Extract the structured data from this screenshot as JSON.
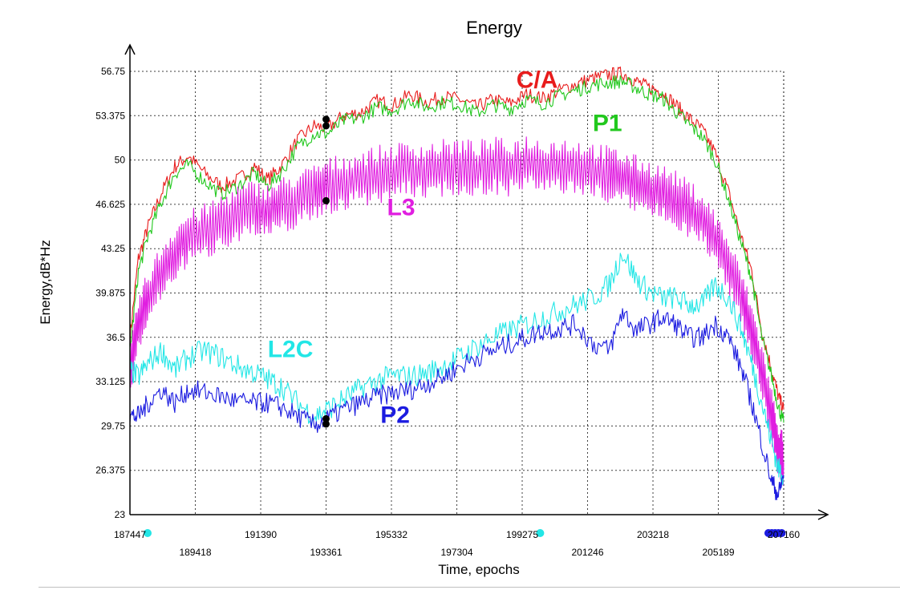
{
  "chart_data": {
    "type": "line",
    "title": "Energy",
    "xlabel": "Time, epochs",
    "ylabel": "Energy,dB*Hz",
    "xlim": [
      187447,
      207160
    ],
    "ylim": [
      23,
      56.75
    ],
    "grid": true,
    "x_ticks_upper": [
      "187447",
      "191390",
      "195332",
      "199275",
      "203218",
      "207160"
    ],
    "x_ticks_lower": [
      "189418",
      "193361",
      "197304",
      "201246",
      "205189"
    ],
    "y_ticks": [
      "56.75",
      "53.375",
      "50",
      "46.625",
      "43.25",
      "39.875",
      "36.5",
      "33.125",
      "29.75",
      "26.375",
      "23"
    ],
    "series": [
      {
        "name": "C/A",
        "color": "#e81c1c",
        "x": [
          187447,
          187700,
          188000,
          188400,
          188800,
          189200,
          189700,
          190200,
          190700,
          191200,
          191600,
          192000,
          192500,
          193000,
          193400,
          193900,
          194400,
          194900,
          195400,
          195900,
          196400,
          196900,
          197400,
          197900,
          198400,
          198900,
          199400,
          199900,
          200400,
          200900,
          201400,
          201900,
          202300,
          202700,
          203100,
          203500,
          203900,
          204300,
          204700,
          205100,
          205500,
          205900,
          206200,
          206500,
          206800,
          207000,
          207160
        ],
        "y": [
          36.5,
          42.5,
          45.0,
          47.5,
          49.5,
          50.3,
          49.0,
          48.0,
          48.5,
          49.5,
          48.5,
          49.5,
          51.5,
          52.6,
          52.4,
          53.4,
          53.6,
          54.5,
          54.2,
          55.0,
          54.4,
          54.8,
          54.6,
          54.0,
          54.6,
          54.3,
          55.0,
          54.7,
          55.3,
          55.8,
          56.2,
          56.5,
          56.6,
          56.0,
          55.5,
          55.2,
          54.2,
          53.2,
          52.3,
          50.5,
          47.5,
          44.0,
          41.5,
          37.0,
          34.0,
          32.0,
          31.0
        ]
      },
      {
        "name": "P1",
        "color": "#22c81e",
        "x": [
          187447,
          187700,
          188000,
          188400,
          188800,
          189200,
          189700,
          190200,
          190700,
          191200,
          191600,
          192000,
          192500,
          193000,
          193400,
          193900,
          194400,
          194900,
          195400,
          195900,
          196400,
          196900,
          197400,
          197900,
          198400,
          198900,
          199400,
          199900,
          200400,
          200900,
          201400,
          201900,
          202300,
          202700,
          203100,
          203500,
          203900,
          204300,
          204700,
          205100,
          205500,
          205900,
          206200,
          206500,
          206800,
          207000,
          207160
        ],
        "y": [
          35.5,
          41.5,
          44.3,
          46.8,
          49.0,
          49.6,
          48.4,
          47.4,
          48.0,
          49.0,
          48.0,
          49.0,
          51.0,
          52.0,
          52.0,
          53.0,
          53.2,
          54.0,
          53.8,
          54.6,
          54.0,
          54.4,
          54.2,
          53.6,
          54.2,
          53.9,
          54.6,
          54.3,
          54.9,
          55.3,
          55.7,
          55.9,
          56.0,
          55.5,
          55.0,
          54.7,
          53.7,
          52.7,
          51.8,
          50.0,
          47.0,
          43.5,
          41.0,
          36.5,
          33.5,
          31.2,
          30.0
        ]
      },
      {
        "name": "L3",
        "color": "#e01ee0",
        "x": [
          187447,
          187700,
          188000,
          188400,
          188800,
          189200,
          189700,
          190200,
          190700,
          191200,
          191600,
          192000,
          192500,
          193000,
          193400,
          193900,
          194400,
          194900,
          195400,
          195900,
          196400,
          196900,
          197400,
          197900,
          198400,
          198900,
          199400,
          199900,
          200400,
          200900,
          201400,
          201900,
          202300,
          202700,
          203100,
          203500,
          203900,
          204300,
          204700,
          205100,
          205500,
          205900,
          206200,
          206500,
          206800,
          207000,
          207160
        ],
        "y": [
          33.5,
          37.5,
          39.5,
          41.5,
          43.0,
          44.0,
          44.5,
          45.3,
          46.0,
          46.3,
          46.0,
          46.5,
          47.0,
          47.5,
          48.0,
          48.3,
          48.6,
          48.9,
          49.1,
          49.3,
          49.2,
          49.4,
          49.5,
          49.3,
          49.6,
          49.4,
          49.8,
          49.5,
          49.6,
          49.5,
          49.2,
          48.9,
          48.6,
          48.2,
          47.8,
          47.5,
          47.0,
          46.3,
          45.5,
          44.0,
          42.0,
          39.5,
          37.0,
          34.0,
          30.5,
          28.0,
          27.0
        ]
      },
      {
        "name": "L2C",
        "color": "#22e6e6",
        "x": [
          187447,
          187700,
          188000,
          188400,
          188800,
          189200,
          189700,
          190200,
          190700,
          191200,
          191600,
          192000,
          192500,
          193000,
          193400,
          193900,
          194400,
          194900,
          195400,
          195900,
          196400,
          196900,
          197400,
          197900,
          198400,
          198900,
          199400,
          199900,
          200400,
          200900,
          201400,
          201900,
          202300,
          202700,
          203100,
          203500,
          203900,
          204300,
          204700,
          205100,
          205500,
          205900,
          206200,
          206500,
          206800,
          207000,
          207160
        ],
        "y": [
          34.0,
          33.5,
          34.5,
          35.5,
          34.0,
          35.0,
          35.5,
          35.0,
          34.3,
          33.8,
          33.3,
          32.8,
          31.5,
          30.5,
          31.0,
          31.8,
          32.6,
          33.2,
          33.6,
          33.5,
          33.8,
          34.3,
          35.0,
          35.8,
          36.5,
          37.0,
          37.5,
          38.0,
          38.5,
          39.0,
          39.5,
          40.5,
          43.0,
          41.0,
          40.0,
          39.5,
          39.5,
          39.0,
          39.0,
          40.5,
          39.5,
          37.0,
          34.5,
          31.5,
          28.5,
          26.5,
          26.0
        ]
      },
      {
        "name": "P2",
        "color": "#1c1ce0",
        "x": [
          187447,
          187700,
          188000,
          188400,
          188800,
          189200,
          189700,
          190200,
          190700,
          191200,
          191600,
          192000,
          192500,
          193000,
          193400,
          193900,
          194400,
          194900,
          195400,
          195900,
          196400,
          196900,
          197400,
          197900,
          198400,
          198900,
          199400,
          199900,
          200400,
          200900,
          201400,
          201900,
          202300,
          202700,
          203100,
          203500,
          203900,
          204300,
          204700,
          205100,
          205500,
          205900,
          206200,
          206500,
          206800,
          207000,
          207160
        ],
        "y": [
          30.5,
          30.5,
          31.5,
          32.5,
          31.5,
          32.5,
          32.3,
          32.0,
          31.6,
          31.5,
          31.5,
          31.2,
          30.5,
          29.8,
          30.3,
          31.0,
          31.5,
          32.0,
          32.3,
          32.5,
          33.0,
          33.5,
          34.3,
          35.0,
          35.5,
          36.0,
          36.5,
          37.0,
          37.2,
          37.5,
          36.0,
          35.5,
          38.5,
          37.0,
          37.5,
          38.0,
          37.5,
          36.5,
          36.5,
          37.5,
          36.5,
          34.0,
          31.5,
          28.5,
          25.5,
          24.5,
          26.0
        ]
      }
    ],
    "series_labels": [
      {
        "text": "C/A",
        "color": "#e81c1c",
        "x": 199100,
        "y": 55.5
      },
      {
        "text": "P1",
        "color": "#22c81e",
        "x": 201400,
        "y": 52.2
      },
      {
        "text": "L3",
        "color": "#e01ee0",
        "x": 195200,
        "y": 45.8
      },
      {
        "text": "L2C",
        "color": "#22e6e6",
        "x": 191600,
        "y": 35.0
      },
      {
        "text": "P2",
        "color": "#1c1ce0",
        "x": 195000,
        "y": 30.0
      }
    ],
    "markers": [
      {
        "x": 193361,
        "y": 53.1,
        "color": "#000000"
      },
      {
        "x": 193361,
        "y": 52.6,
        "color": "#000000"
      },
      {
        "x": 193361,
        "y": 46.9,
        "color": "#000000"
      },
      {
        "x": 193361,
        "y": 30.3,
        "color": "#000000"
      },
      {
        "x": 193361,
        "y": 29.9,
        "color": "#000000"
      }
    ],
    "axis_markers": [
      {
        "x": 187447,
        "color": "#22e6e6"
      },
      {
        "x": 199817,
        "color": "#22e6e6"
      },
      {
        "x": 206700,
        "color": "#1c1ce0"
      },
      {
        "x": 206800,
        "color": "#1c1ce0"
      },
      {
        "x": 206900,
        "color": "#1c1ce0"
      },
      {
        "x": 207000,
        "color": "#1c1ce0"
      },
      {
        "x": 207100,
        "color": "#1c1ce0"
      }
    ]
  }
}
